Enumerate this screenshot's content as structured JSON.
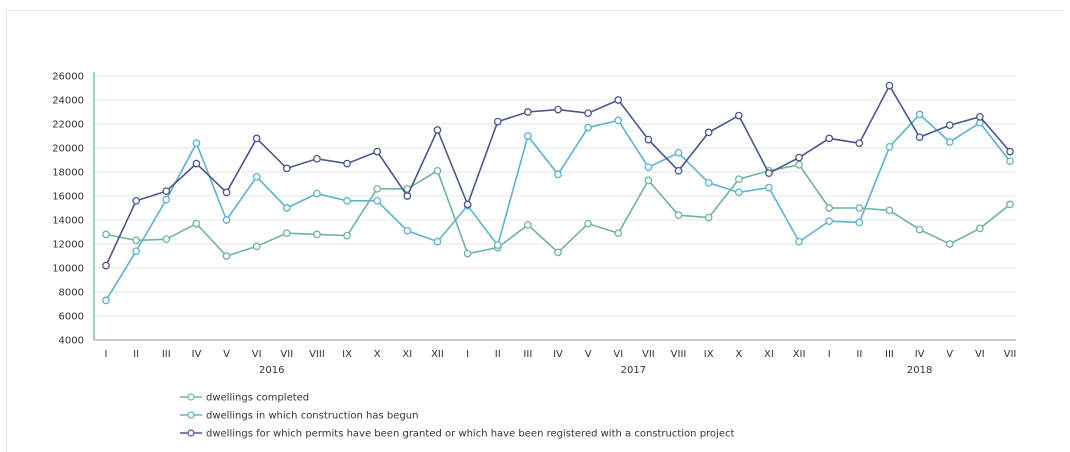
{
  "chart_data": {
    "type": "line",
    "title": "",
    "xlabel": "",
    "ylabel": "",
    "ylim": [
      4000,
      26000
    ],
    "yticks": [
      4000,
      6000,
      8000,
      10000,
      12000,
      14000,
      16000,
      18000,
      20000,
      22000,
      24000,
      26000
    ],
    "grid": true,
    "legend_position": "bottom-left",
    "x": [
      "I",
      "II",
      "III",
      "IV",
      "V",
      "VI",
      "VII",
      "VIII",
      "IX",
      "X",
      "XI",
      "XII",
      "I",
      "II",
      "III",
      "IV",
      "V",
      "VI",
      "VII",
      "VIII",
      "IX",
      "X",
      "XI",
      "XII",
      "I",
      "II",
      "III",
      "IV",
      "V",
      "VI",
      "VII"
    ],
    "years": [
      {
        "label": "2016",
        "start": 0,
        "end": 11
      },
      {
        "label": "2017",
        "start": 12,
        "end": 23
      },
      {
        "label": "2018",
        "start": 24,
        "end": 30
      }
    ],
    "series": [
      {
        "name": "dwellings completed",
        "color": "#6fb59a",
        "values": [
          12800,
          12300,
          12400,
          13700,
          11000,
          11800,
          12900,
          12800,
          12700,
          16600,
          16600,
          18100,
          11200,
          11700,
          13600,
          11300,
          13700,
          12900,
          17300,
          14400,
          14200,
          17400,
          18100,
          18600,
          15000,
          15000,
          14800,
          13200,
          12000,
          13300,
          15300
        ]
      },
      {
        "name": "dwellings in which construction has begun",
        "color": "#5bb3cf",
        "values": [
          7300,
          11400,
          15700,
          20400,
          14000,
          17600,
          15000,
          16200,
          15600,
          15600,
          13100,
          12200,
          15200,
          11900,
          21000,
          17800,
          21700,
          22300,
          18400,
          19600,
          17100,
          16300,
          16700,
          12200,
          13900,
          13800,
          20100,
          22800,
          20500,
          22100,
          18900
        ]
      },
      {
        "name": "dwellings for which permits have been granted or which have been registered with a construction project",
        "color": "#4a568f",
        "values": [
          10200,
          15600,
          16400,
          18700,
          16300,
          20800,
          18300,
          19100,
          18700,
          19700,
          16000,
          21500,
          15300,
          22200,
          23000,
          23200,
          22900,
          24000,
          20700,
          18100,
          21300,
          22700,
          17900,
          19200,
          20800,
          20400,
          25200,
          20900,
          21900,
          22600,
          19700
        ]
      }
    ]
  }
}
